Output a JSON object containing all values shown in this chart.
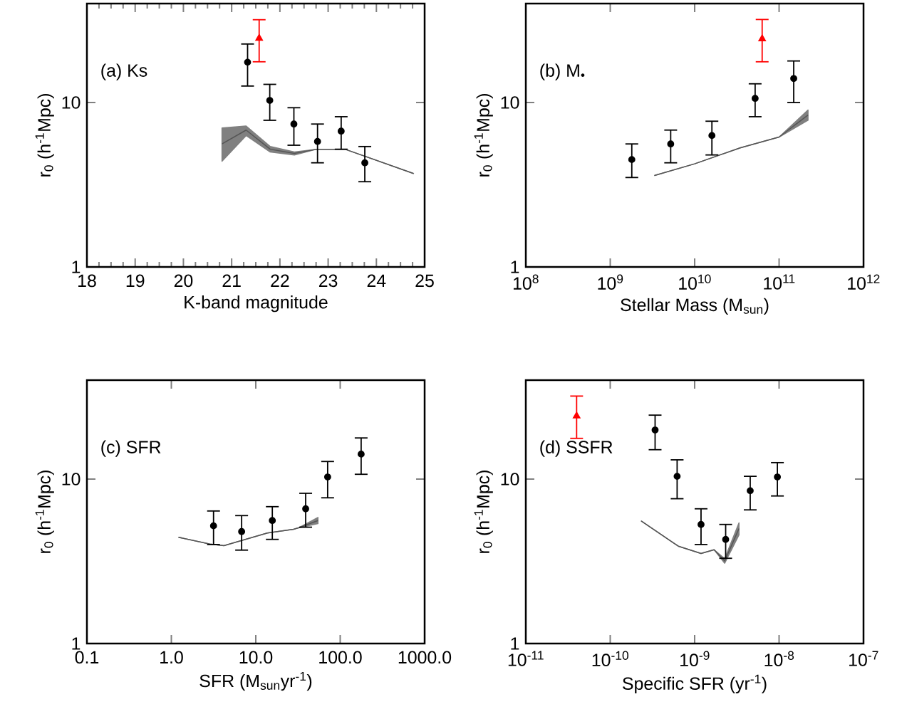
{
  "chart_data": [
    {
      "type": "scatter",
      "xlabel": "K-band magnitude",
      "ylabel": "r$_{0}$ (h$^{-1}$Mpc)",
      "annotations": [
        "(a) Ks"
      ],
      "log": "y",
      "xlim": [
        18,
        25
      ],
      "ylim": [
        1,
        40
      ],
      "xticks": [
        18,
        19,
        20,
        21,
        22,
        23,
        24,
        25
      ],
      "yticks": [
        1,
        10
      ],
      "series": [
        {
          "type": "line",
          "color": "#555555",
          "line_style": "solid",
          "marker": "none",
          "x": [
            20.8,
            21.3,
            21.8,
            22.3,
            22.76,
            23.35,
            24.77
          ],
          "values": [
            5.6,
            6.8,
            5.2,
            4.9,
            5.2,
            5.2,
            3.7
          ],
          "lower": [
            4.4,
            6.3,
            5.0,
            4.8,
            5.2,
            5.2,
            3.7
          ],
          "upper": [
            7.0,
            7.2,
            5.4,
            5.0,
            5.2,
            5.2,
            3.7
          ]
        },
        {
          "color": "#000000",
          "marker": "circle",
          "x": [
            21.33,
            21.79,
            22.29,
            22.78,
            23.27,
            23.76
          ],
          "values": [
            17.6,
            10.3,
            7.4,
            5.8,
            6.7,
            4.3
          ],
          "errors": [
            [
              12.6,
              22.7
            ],
            [
              7.8,
              12.9
            ],
            [
              5.5,
              9.3
            ],
            [
              4.3,
              7.4
            ],
            [
              5.2,
              8.2
            ],
            [
              3.3,
              5.4
            ]
          ]
        },
        {
          "color": "#ff0000",
          "marker": "triangle",
          "x": [
            21.57
          ],
          "values": [
            24.6
          ],
          "errors": [
            [
              17.7,
              31.9
            ]
          ]
        }
      ]
    },
    {
      "type": "scatter",
      "xlabel": "Stellar Mass (M$_{sun}$)",
      "ylabel": "r$_{0}$ (h$^{-1}$Mpc)",
      "annotations": [
        "(b) M$_{•}$"
      ],
      "log": "xy",
      "xlim": [
        100000000.0,
        1000000000000.0
      ],
      "ylim": [
        1,
        40
      ],
      "xticks": [
        {
          "value": 100000000.0,
          "label": "10$^{8}$"
        },
        {
          "value": 1000000000.0,
          "label": "10$^{9}$"
        },
        {
          "value": 10000000000.0,
          "label": "10$^{10}$"
        },
        {
          "value": 100000000000.0,
          "label": "10$^{11}$"
        },
        {
          "value": 1000000000000.0,
          "label": "10$^{12}$"
        }
      ],
      "yticks": [
        1,
        10
      ],
      "series": [
        {
          "type": "line",
          "color": "#555555",
          "line_style": "solid",
          "marker": "none",
          "x": [
            3350000000.0,
            10000000000.0,
            34500000000.0,
            100000000000.0,
            220000000000.0
          ],
          "values": [
            3.6,
            4.24,
            5.3,
            6.17,
            8.4
          ],
          "lower": [
            3.6,
            4.24,
            5.3,
            6.17,
            7.8
          ],
          "upper": [
            3.6,
            4.24,
            5.3,
            6.17,
            9.0
          ]
        },
        {
          "color": "#000000",
          "marker": "circle",
          "x": [
            1800000000.0,
            5200000000.0,
            16000000000.0,
            52000000000.0,
            149000000000.0
          ],
          "values": [
            4.5,
            5.6,
            6.3,
            10.6,
            14.0
          ],
          "errors": [
            [
              3.5,
              5.6
            ],
            [
              4.3,
              6.8
            ],
            [
              4.8,
              7.7
            ],
            [
              8.2,
              13.0
            ],
            [
              10.0,
              17.9
            ]
          ]
        },
        {
          "color": "#ff0000",
          "marker": "triangle",
          "x": [
            63000000000.0
          ],
          "values": [
            24.4
          ],
          "errors": [
            [
              17.7,
              32
            ]
          ]
        }
      ]
    },
    {
      "type": "scatter",
      "xlabel": "SFR (M$_{sun}$yr$^{-1}$)",
      "ylabel": "r$_{0}$ (h$^{-1}$Mpc)",
      "annotations": [
        "(c) SFR"
      ],
      "log": "xy",
      "xlim": [
        0.1,
        1000
      ],
      "ylim": [
        1,
        40
      ],
      "xticks": [
        0.1,
        {
          "value": 1,
          "label": "1.0"
        },
        {
          "value": 10,
          "label": "10.0"
        },
        {
          "value": 100,
          "label": "100.0"
        },
        {
          "value": 1000,
          "label": "1000.0"
        }
      ],
      "yticks": [
        1,
        10
      ],
      "series": [
        {
          "type": "line",
          "color": "#555555",
          "line_style": "solid",
          "marker": "none",
          "x": [
            1.22,
            2.85,
            4.2,
            13.7,
            28,
            32,
            54.5
          ],
          "values": [
            4.43,
            4.03,
            3.94,
            4.7,
            4.95,
            5.05,
            5.6
          ],
          "lower": [
            4.43,
            4.03,
            3.94,
            4.7,
            4.95,
            5.05,
            5.36
          ],
          "upper": [
            4.43,
            4.03,
            3.94,
            4.7,
            4.95,
            5.05,
            5.85
          ]
        },
        {
          "color": "#000000",
          "marker": "circle",
          "x": [
            3.16,
            6.8,
            15.7,
            39,
            71,
            177
          ],
          "values": [
            5.2,
            4.8,
            5.6,
            6.6,
            10.3,
            14.2
          ],
          "errors": [
            [
              4.0,
              6.4
            ],
            [
              3.7,
              6.0
            ],
            [
              4.3,
              6.8
            ],
            [
              5.1,
              8.2
            ],
            [
              7.7,
              12.8
            ],
            [
              10.7,
              17.8
            ]
          ]
        }
      ]
    },
    {
      "type": "scatter",
      "xlabel": "Specific SFR (yr$^{-1}$)",
      "ylabel": "r$_{0}$ (h$^{-1}$Mpc)",
      "annotations": [
        "(d) SSFR"
      ],
      "log": "xy",
      "xlim": [
        1e-11,
        1e-07
      ],
      "ylim": [
        1,
        40
      ],
      "xticks": [
        {
          "value": 1e-11,
          "label": "10$^{-11}$"
        },
        {
          "value": 1e-10,
          "label": "10$^{-10}$"
        },
        {
          "value": 1e-09,
          "label": "10$^{-9}$"
        },
        {
          "value": 1e-08,
          "label": "10$^{-8}$"
        },
        {
          "value": 1e-07,
          "label": "10$^{-7}$"
        }
      ],
      "yticks": [
        1,
        10
      ],
      "series": [
        {
          "type": "line",
          "color": "#555555",
          "line_style": "solid",
          "marker": "none",
          "x": [
            2.33e-10,
            6.4e-10,
            1.19e-09,
            1.7e-09,
            2.27e-09,
            3.35e-09
          ],
          "values": [
            5.56,
            3.91,
            3.53,
            3.72,
            3.18,
            5.0
          ],
          "lower": [
            5.56,
            3.91,
            3.53,
            3.72,
            3.08,
            4.58
          ],
          "upper": [
            5.56,
            3.91,
            3.53,
            3.72,
            3.28,
            5.42
          ]
        },
        {
          "color": "#000000",
          "marker": "circle",
          "x": [
            3.4e-10,
            6.2e-10,
            1.19e-09,
            2.33e-09,
            4.55e-09,
            9.55e-09
          ],
          "values": [
            19.9,
            10.4,
            5.3,
            4.3,
            8.5,
            10.3
          ],
          "errors": [
            [
              15.1,
              24.5
            ],
            [
              7.6,
              13.1
            ],
            [
              4.0,
              6.6
            ],
            [
              3.3,
              5.3
            ],
            [
              6.5,
              10.4
            ],
            [
              7.9,
              12.6
            ]
          ]
        },
        {
          "color": "#ff0000",
          "marker": "triangle",
          "x": [
            4e-11
          ],
          "values": [
            24.2
          ],
          "errors": [
            [
              17.7,
              32
            ]
          ]
        }
      ]
    }
  ]
}
